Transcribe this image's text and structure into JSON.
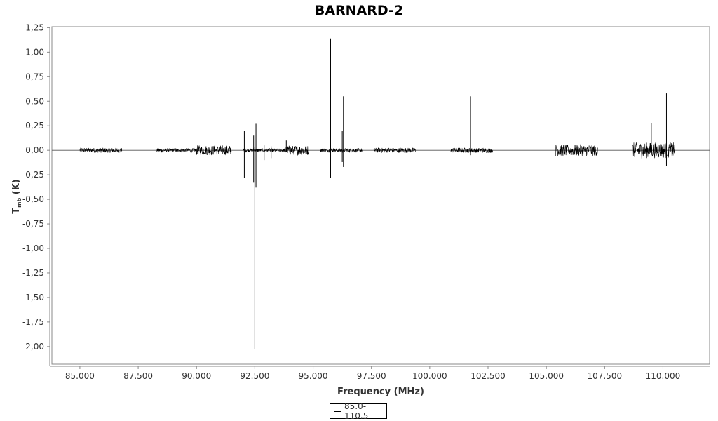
{
  "chart_data": {
    "type": "line",
    "title": "BARNARD-2",
    "xlabel": "Frequency (MHz)",
    "ylabel": "T",
    "ylabel_sub": "mb",
    "ylabel_unit": " (K)",
    "xlim": [
      83.8,
      112.0
    ],
    "ylim": [
      -2.18,
      1.26
    ],
    "x_ticks": [
      85000,
      87500,
      90000,
      92500,
      95000,
      97500,
      100000,
      102500,
      105000,
      107500,
      110000
    ],
    "x_tick_labels": [
      "85.000",
      "87.500",
      "90.000",
      "92.500",
      "95.000",
      "97.500",
      "100.000",
      "102.500",
      "105.000",
      "107.500",
      "110.000"
    ],
    "y_ticks": [
      1.25,
      1.0,
      0.75,
      0.5,
      0.25,
      0.0,
      -0.25,
      -0.5,
      -0.75,
      -1.0,
      -1.25,
      -1.5,
      -1.75,
      -2.0
    ],
    "y_tick_labels": [
      "1,25",
      "1,00",
      "0,75",
      "0,50",
      "0,25",
      "0,00",
      "-0,25",
      "-0,50",
      "-0,75",
      "-1,00",
      "-1,25",
      "-1,50",
      "-1,75",
      "-2,00"
    ],
    "series": [
      {
        "name": "85.0-110.5",
        "color": "#000000",
        "noise_bands": [
          {
            "x": [
              85.0,
              86.8
            ],
            "amp": 0.025
          },
          {
            "x": [
              88.3,
              90.0
            ],
            "amp": 0.02
          },
          {
            "x": [
              90.0,
              91.5
            ],
            "amp": 0.05
          },
          {
            "x": [
              92.0,
              93.8
            ],
            "amp": 0.018
          },
          {
            "x": [
              93.8,
              94.8
            ],
            "amp": 0.05
          },
          {
            "x": [
              95.3,
              97.1
            ],
            "amp": 0.02
          },
          {
            "x": [
              97.6,
              99.4
            ],
            "amp": 0.025
          },
          {
            "x": [
              100.9,
              102.7
            ],
            "amp": 0.025
          },
          {
            "x": [
              105.4,
              107.2
            ],
            "amp": 0.06
          },
          {
            "x": [
              108.7,
              110.5
            ],
            "amp": 0.08
          }
        ],
        "lines": [
          {
            "x": 92.05,
            "min": -0.28,
            "max": 0.2
          },
          {
            "x": 92.45,
            "min": -0.33,
            "max": 0.15
          },
          {
            "x": 92.5,
            "min": -2.03,
            "max": 0.03
          },
          {
            "x": 92.55,
            "min": -0.38,
            "max": 0.27
          },
          {
            "x": 92.9,
            "min": -0.1,
            "max": 0.05
          },
          {
            "x": 93.2,
            "min": -0.08,
            "max": 0.04
          },
          {
            "x": 93.85,
            "min": -0.02,
            "max": 0.1
          },
          {
            "x": 95.75,
            "min": -0.28,
            "max": 1.14
          },
          {
            "x": 96.3,
            "min": -0.17,
            "max": 0.55
          },
          {
            "x": 96.25,
            "min": -0.12,
            "max": 0.2
          },
          {
            "x": 101.75,
            "min": -0.05,
            "max": 0.55
          },
          {
            "x": 109.5,
            "min": -0.05,
            "max": 0.28
          },
          {
            "x": 110.15,
            "min": -0.16,
            "max": 0.58
          }
        ]
      }
    ]
  }
}
